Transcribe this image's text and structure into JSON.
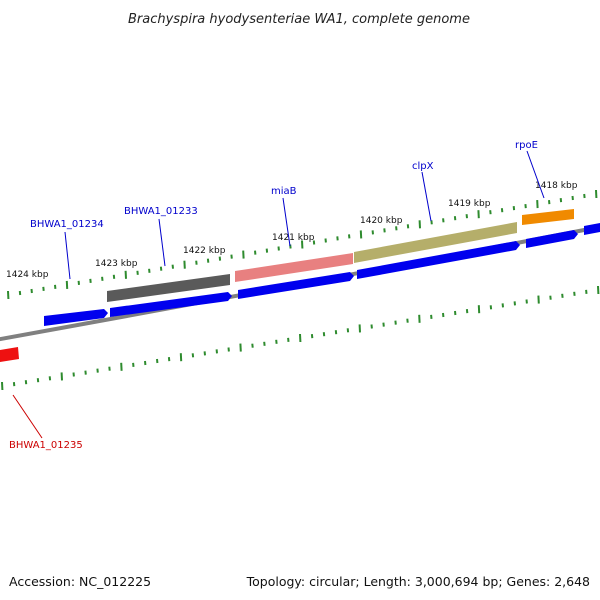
{
  "title": "Brachyspira hyodysenteriae WA1, complete genome",
  "footer": {
    "accession": "Accession: NC_012225",
    "summary": "Topology: circular; Length: 3,000,694 bp; Genes: 2,648"
  },
  "scale_labels": [
    "1424 kbp",
    "1423 kbp",
    "1422 kbp",
    "1421 kbp",
    "1420 kbp",
    "1419 kbp",
    "1418 kbp"
  ],
  "gene_labels": [
    "BHWA1_01234",
    "BHWA1_01233",
    "miaB",
    "clpX",
    "rpoE",
    "BHWA1_01235"
  ],
  "colors": {
    "backbone": "#808080",
    "forward_cds": "#0000ee",
    "tick": "#2e8b2e",
    "label_blue": "#0000cc",
    "label_red": "#cc0000",
    "gene_gray": "#5a5a5a",
    "gene_pink": "#e88080",
    "gene_olive": "#b5ae6a",
    "gene_orange": "#f08a00",
    "gene_red": "#ee1111"
  }
}
